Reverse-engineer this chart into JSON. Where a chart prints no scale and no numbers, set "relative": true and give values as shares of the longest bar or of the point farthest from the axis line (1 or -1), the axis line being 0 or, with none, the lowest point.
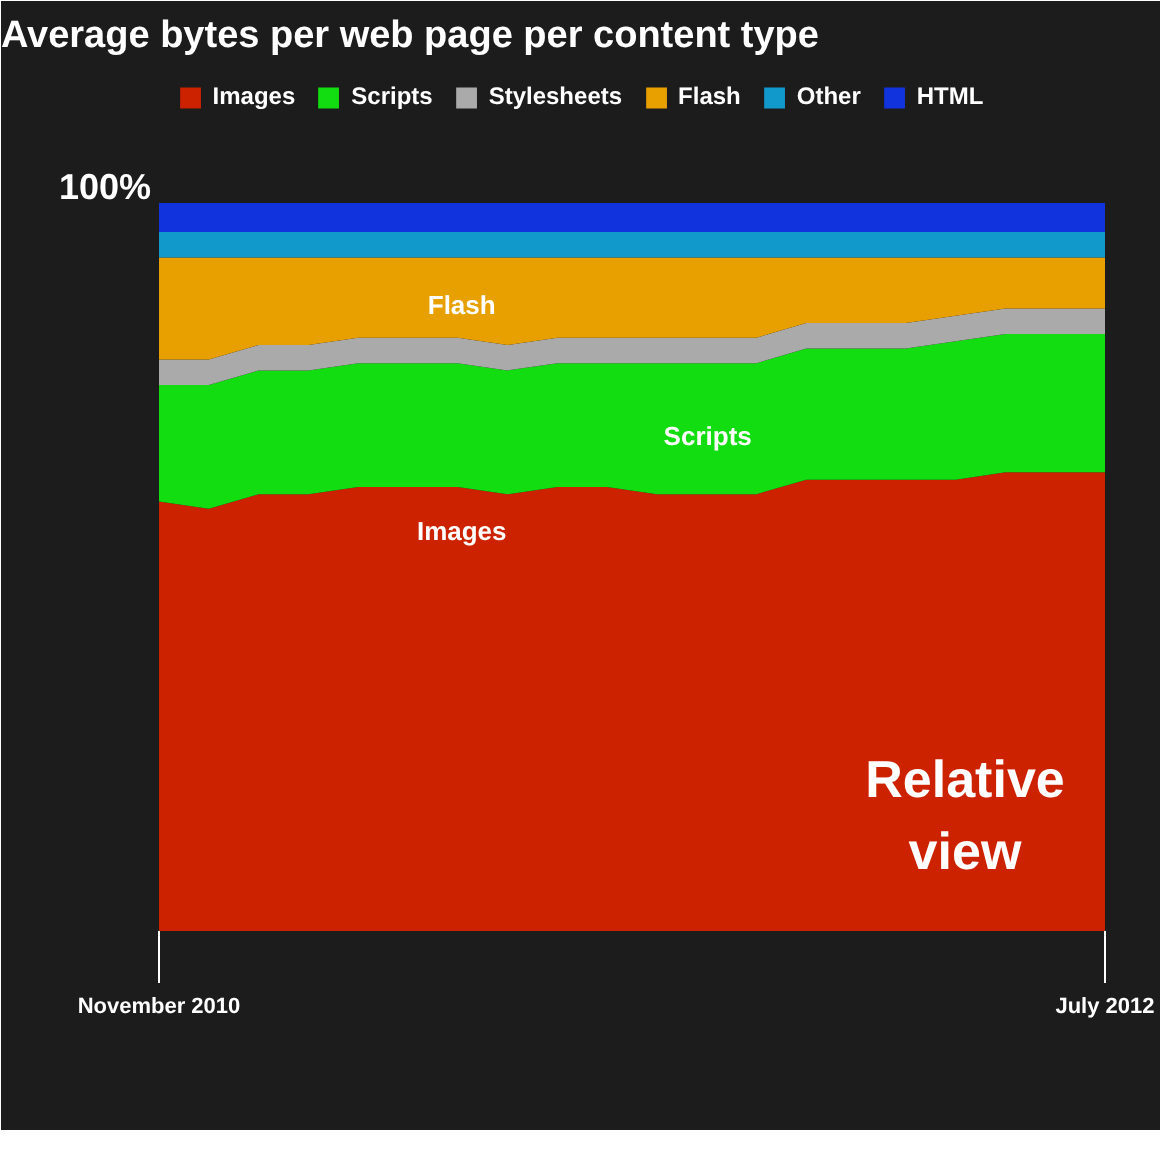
{
  "chart_data": {
    "type": "area",
    "stacked": true,
    "relative": true,
    "title": "Average bytes per web page per content type",
    "categories": [
      "November 2010",
      null,
      null,
      null,
      null,
      null,
      null,
      null,
      null,
      null,
      null,
      null,
      null,
      null,
      null,
      null,
      null,
      null,
      null,
      "July 2012"
    ],
    "series": [
      {
        "name": "Images",
        "color": "#cc2200",
        "values": [
          0.59,
          0.58,
          0.6,
          0.6,
          0.61,
          0.61,
          0.61,
          0.6,
          0.61,
          0.61,
          0.6,
          0.6,
          0.6,
          0.62,
          0.62,
          0.62,
          0.62,
          0.63,
          0.63,
          0.63
        ]
      },
      {
        "name": "Scripts",
        "color": "#11dd11",
        "values": [
          0.16,
          0.17,
          0.17,
          0.17,
          0.17,
          0.17,
          0.17,
          0.17,
          0.17,
          0.17,
          0.18,
          0.18,
          0.18,
          0.18,
          0.18,
          0.18,
          0.19,
          0.19,
          0.19,
          0.19
        ]
      },
      {
        "name": "Stylesheets",
        "color": "#aaaaaa",
        "values": [
          0.035,
          0.035,
          0.035,
          0.035,
          0.035,
          0.035,
          0.035,
          0.035,
          0.035,
          0.035,
          0.035,
          0.035,
          0.035,
          0.035,
          0.035,
          0.035,
          0.035,
          0.035,
          0.035,
          0.035
        ]
      },
      {
        "name": "Flash",
        "color": "#e8a000",
        "values": [
          0.14,
          0.14,
          0.12,
          0.12,
          0.11,
          0.11,
          0.11,
          0.12,
          0.11,
          0.11,
          0.11,
          0.11,
          0.11,
          0.09,
          0.09,
          0.09,
          0.08,
          0.07,
          0.07,
          0.07
        ]
      },
      {
        "name": "Other",
        "color": "#1199cc",
        "values": [
          0.035,
          0.035,
          0.035,
          0.035,
          0.035,
          0.035,
          0.035,
          0.035,
          0.035,
          0.035,
          0.035,
          0.035,
          0.035,
          0.035,
          0.035,
          0.035,
          0.035,
          0.035,
          0.035,
          0.035
        ]
      },
      {
        "name": "HTML",
        "color": "#1133dd",
        "values": [
          0.04,
          0.04,
          0.04,
          0.04,
          0.04,
          0.04,
          0.04,
          0.04,
          0.04,
          0.04,
          0.04,
          0.04,
          0.04,
          0.04,
          0.04,
          0.04,
          0.04,
          0.04,
          0.04,
          0.04
        ]
      }
    ],
    "legend": "top",
    "grid": false,
    "annotations": [
      "100%",
      "Relative\nview",
      "Flash",
      "Scripts",
      "Images"
    ]
  }
}
